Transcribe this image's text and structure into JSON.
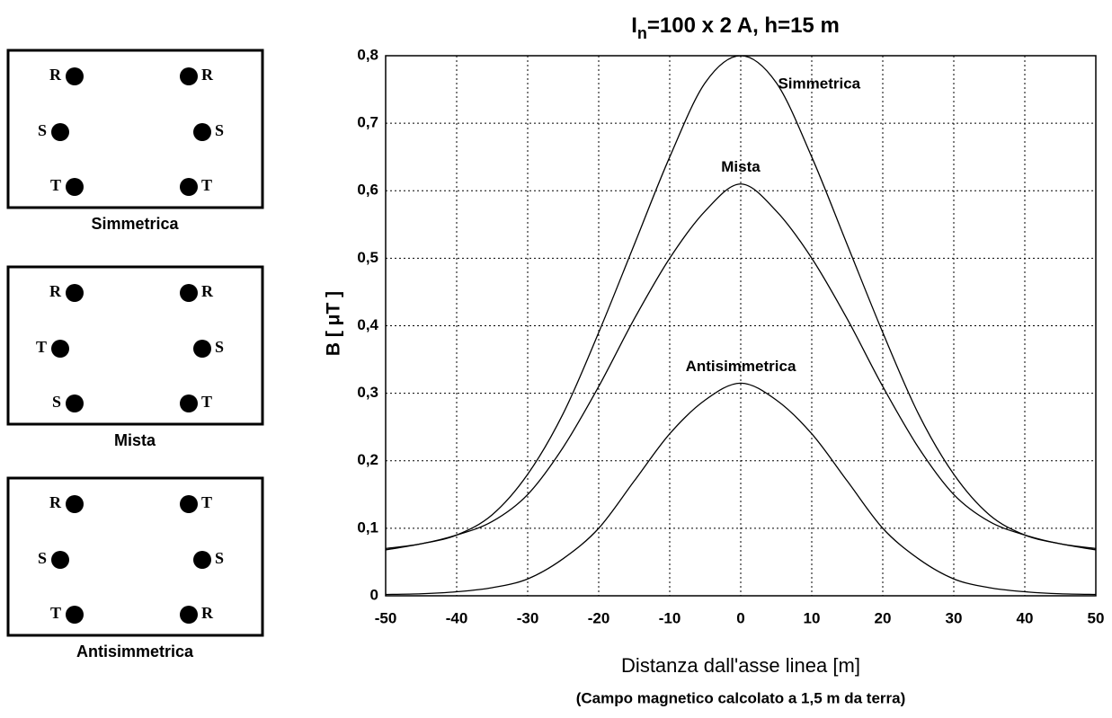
{
  "chart_data": {
    "type": "line",
    "title": {
      "base": "I",
      "subscript": "n",
      "rest": "=100 x 2  A, h=15 m"
    },
    "y_label": "B [ μT ]",
    "x_label": "Distanza dall'asse linea [m]",
    "note": "(Campo magnetico calcolato a 1,5 m da terra)",
    "x": [
      -50,
      -45,
      -40,
      -35,
      -30,
      -25,
      -20,
      -15,
      -10,
      -5,
      0,
      5,
      10,
      15,
      20,
      25,
      30,
      35,
      40,
      45,
      50
    ],
    "series": [
      {
        "name": "Simmetrica",
        "color": "#000000",
        "values": [
          0.068,
          0.077,
          0.09,
          0.12,
          0.18,
          0.27,
          0.39,
          0.52,
          0.65,
          0.76,
          0.8,
          0.76,
          0.65,
          0.52,
          0.39,
          0.27,
          0.18,
          0.12,
          0.09,
          0.077,
          0.068
        ]
      },
      {
        "name": "Mista",
        "color": "#000000",
        "values": [
          0.07,
          0.077,
          0.09,
          0.11,
          0.15,
          0.22,
          0.31,
          0.41,
          0.5,
          0.57,
          0.61,
          0.57,
          0.5,
          0.41,
          0.31,
          0.22,
          0.15,
          0.11,
          0.09,
          0.077,
          0.07
        ]
      },
      {
        "name": "Antisimmetrica",
        "color": "#000000",
        "values": [
          0.002,
          0.003,
          0.006,
          0.012,
          0.025,
          0.055,
          0.1,
          0.17,
          0.24,
          0.29,
          0.315,
          0.29,
          0.24,
          0.17,
          0.1,
          0.055,
          0.025,
          0.012,
          0.006,
          0.003,
          0.002
        ]
      }
    ],
    "xlim": [
      -50,
      50
    ],
    "ylim": [
      0,
      0.8
    ],
    "xticks": [
      -50,
      -40,
      -30,
      -20,
      -10,
      0,
      10,
      20,
      30,
      40,
      50
    ],
    "yticks": [
      0,
      {
        "value": 0.1,
        "label": "0,1"
      },
      {
        "value": 0.2,
        "label": "0,2"
      },
      {
        "value": 0.3,
        "label": "0,3"
      },
      {
        "value": 0.4,
        "label": "0,4"
      },
      {
        "value": 0.5,
        "label": "0,5"
      },
      {
        "value": 0.6,
        "label": "0,6"
      },
      {
        "value": 0.7,
        "label": "0,7"
      },
      {
        "value": 0.8,
        "label": "0,8"
      }
    ],
    "grid": true
  },
  "configurations": [
    {
      "name": "Simmetrica",
      "left": [
        "R",
        "S",
        "T"
      ],
      "right": [
        "R",
        "S",
        "T"
      ]
    },
    {
      "name": "Mista",
      "left": [
        "R",
        "T",
        "S"
      ],
      "right": [
        "R",
        "S",
        "T"
      ]
    },
    {
      "name": "Antisimmetrica",
      "left": [
        "R",
        "S",
        "T"
      ],
      "right": [
        "T",
        "S",
        "R"
      ]
    }
  ]
}
